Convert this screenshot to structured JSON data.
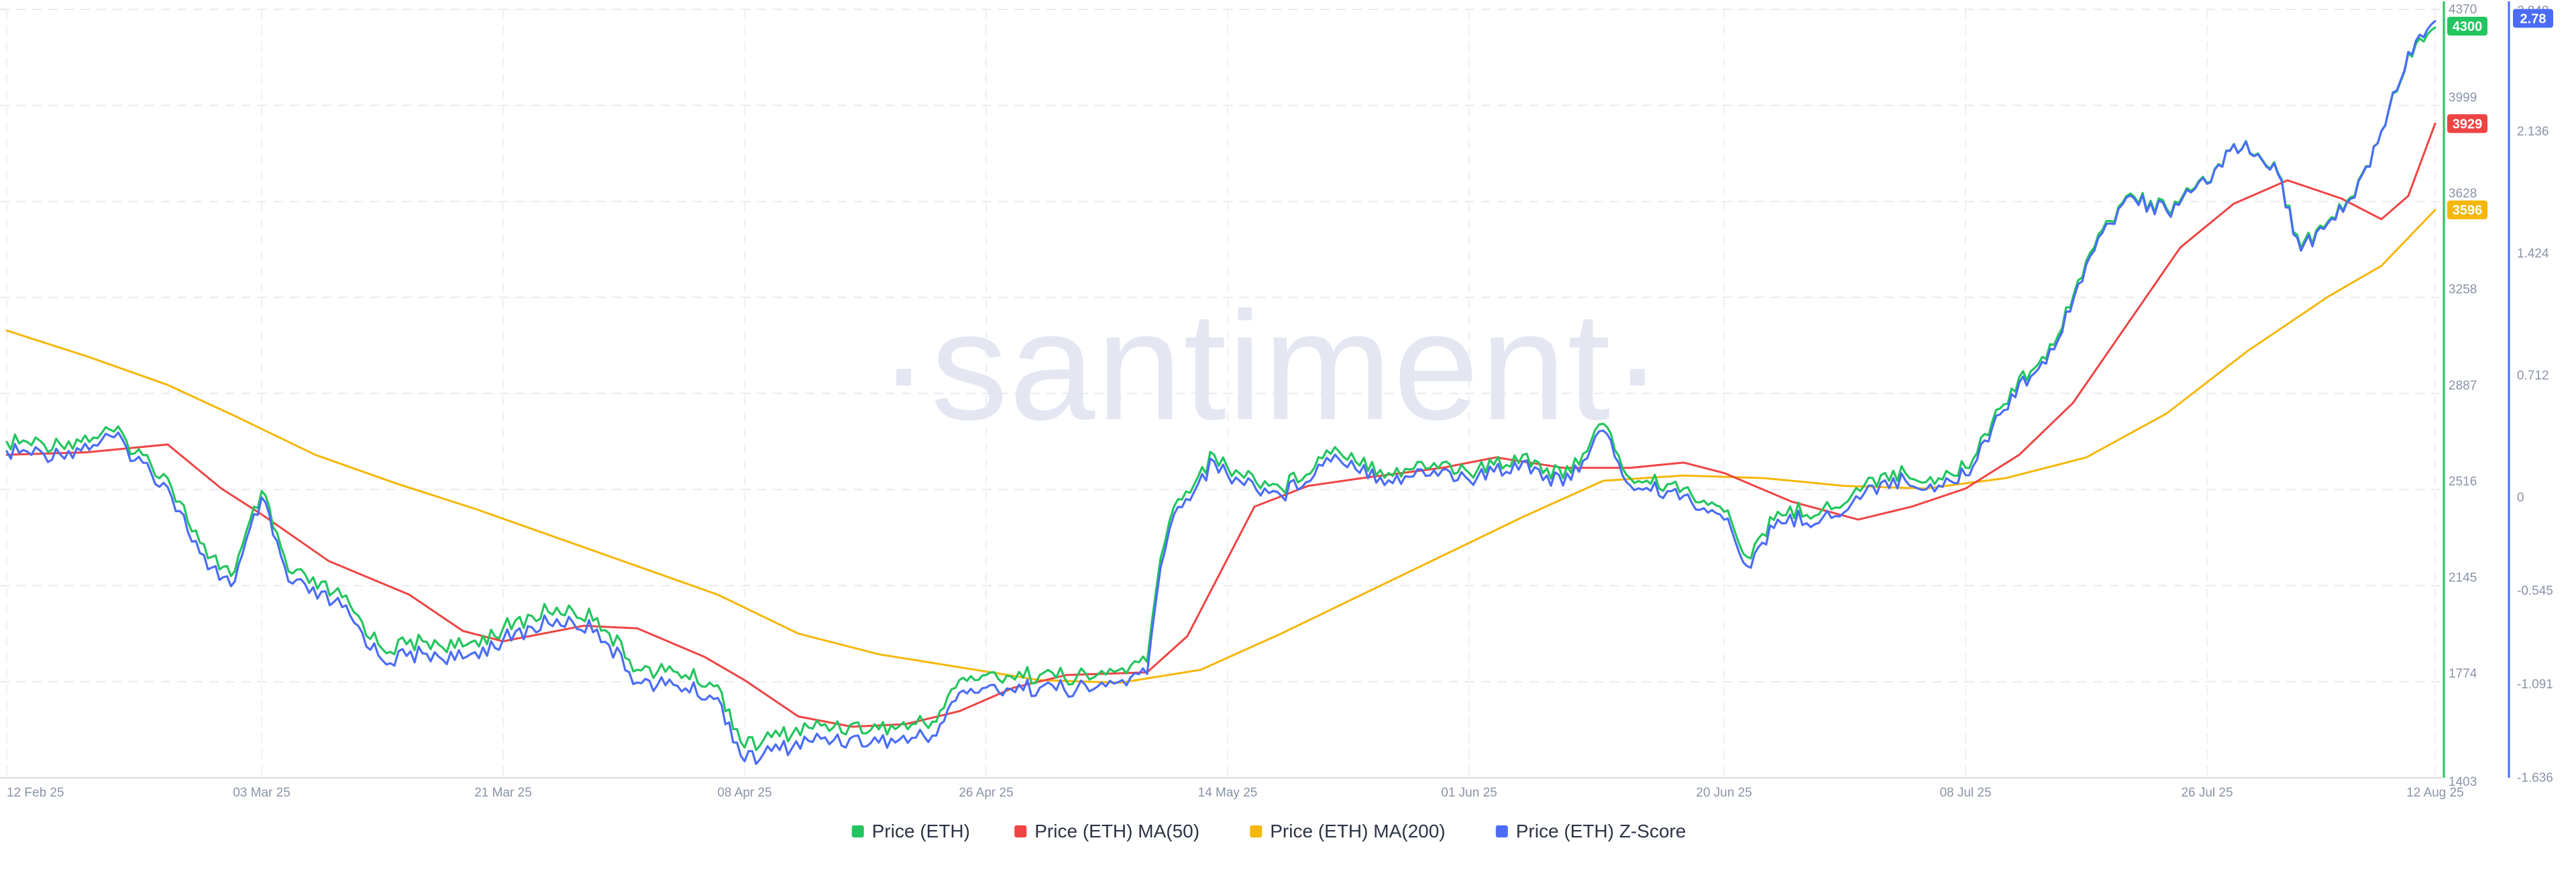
{
  "chart_data": {
    "type": "line",
    "watermark": "·santiment·",
    "x_ticks": [
      "12 Feb 25",
      "03 Mar 25",
      "21 Mar 25",
      "08 Apr 25",
      "26 Apr 25",
      "14 May 25",
      "01 Jun 25",
      "20 Jun 25",
      "08 Jul 25",
      "26 Jul 25",
      "12 Aug 25"
    ],
    "y_left": {
      "min": 1403,
      "max": 4370,
      "ticks": [
        "1403",
        "1774",
        "2145",
        "2516",
        "2887",
        "3258",
        "3628",
        "3999",
        "4370"
      ]
    },
    "y_right": {
      "min": -1.636,
      "max": 2.848,
      "ticks": [
        "-1.636",
        "-1.091",
        "-0.545",
        "0",
        "0.712",
        "1.424",
        "2.136",
        "2.848"
      ]
    },
    "last_values": {
      "price": {
        "label": "4300",
        "value": 4300,
        "color": "#22c55e"
      },
      "ma50": {
        "label": "3929",
        "value": 3929,
        "color": "#ef4444"
      },
      "ma200": {
        "label": "3596",
        "value": 3596,
        "color": "#f5b70a"
      },
      "zscore": {
        "label": "2.78",
        "value": 2.78,
        "color": "#4a6cf7"
      }
    },
    "series": [
      {
        "name": "Price (ETH)",
        "color": "#22c55e",
        "axis": "left",
        "points": [
          [
            "12 Feb 25",
            2700
          ],
          [
            "16 Feb 25",
            2690
          ],
          [
            "20 Feb 25",
            2740
          ],
          [
            "24 Feb 25",
            2560
          ],
          [
            "27 Feb 25",
            2250
          ],
          [
            "01 Mar 25",
            2200
          ],
          [
            "03 Mar 25",
            2510
          ],
          [
            "05 Mar 25",
            2200
          ],
          [
            "09 Mar 25",
            2100
          ],
          [
            "12 Mar 25",
            1900
          ],
          [
            "15 Mar 25",
            1930
          ],
          [
            "18 Mar 25",
            1910
          ],
          [
            "21 Mar 25",
            1980
          ],
          [
            "25 Mar 25",
            2060
          ],
          [
            "28 Mar 25",
            2020
          ],
          [
            "31 Mar 25",
            1820
          ],
          [
            "03 Apr 25",
            1810
          ],
          [
            "06 Apr 25",
            1760
          ],
          [
            "08 Apr 25",
            1520
          ],
          [
            "10 Apr 25",
            1560
          ],
          [
            "14 Apr 25",
            1610
          ],
          [
            "18 Apr 25",
            1590
          ],
          [
            "22 Apr 25",
            1620
          ],
          [
            "24 Apr 25",
            1780
          ],
          [
            "26 Apr 25",
            1800
          ],
          [
            "30 Apr 25",
            1800
          ],
          [
            "04 May 25",
            1790
          ],
          [
            "08 May 25",
            1850
          ],
          [
            "09 May 25",
            2250
          ],
          [
            "10 May 25",
            2450
          ],
          [
            "13 May 25",
            2650
          ],
          [
            "14 May 25",
            2600
          ],
          [
            "18 May 25",
            2520
          ],
          [
            "22 May 25",
            2680
          ],
          [
            "26 May 25",
            2580
          ],
          [
            "30 May 25",
            2620
          ],
          [
            "01 Jun 25",
            2580
          ],
          [
            "05 Jun 25",
            2650
          ],
          [
            "08 Jun 25",
            2560
          ],
          [
            "11 Jun 25",
            2770
          ],
          [
            "13 Jun 25",
            2560
          ],
          [
            "17 Jun 25",
            2520
          ],
          [
            "20 Jun 25",
            2430
          ],
          [
            "22 Jun 25",
            2250
          ],
          [
            "24 Jun 25",
            2430
          ],
          [
            "28 Jun 25",
            2440
          ],
          [
            "02 Jul 25",
            2580
          ],
          [
            "06 Jul 25",
            2560
          ],
          [
            "08 Jul 25",
            2600
          ],
          [
            "10 Jul 25",
            2780
          ],
          [
            "12 Jul 25",
            2950
          ],
          [
            "14 Jul 25",
            3020
          ],
          [
            "17 Jul 25",
            3400
          ],
          [
            "20 Jul 25",
            3650
          ],
          [
            "23 Jul 25",
            3600
          ],
          [
            "26 Jul 25",
            3700
          ],
          [
            "28 Jul 25",
            3850
          ],
          [
            "31 Jul 25",
            3780
          ],
          [
            "02 Aug 25",
            3450
          ],
          [
            "04 Aug 25",
            3550
          ],
          [
            "06 Aug 25",
            3650
          ],
          [
            "08 Aug 25",
            3900
          ],
          [
            "10 Aug 25",
            4200
          ],
          [
            "12 Aug 25",
            4300
          ]
        ]
      },
      {
        "name": "Price (ETH) MA(50)",
        "color": "#ef4444",
        "axis": "left",
        "points": [
          [
            "12 Feb 25",
            2650
          ],
          [
            "18 Feb 25",
            2660
          ],
          [
            "24 Feb 25",
            2690
          ],
          [
            "28 Feb 25",
            2520
          ],
          [
            "03 Mar 25",
            2420
          ],
          [
            "08 Mar 25",
            2240
          ],
          [
            "14 Mar 25",
            2110
          ],
          [
            "18 Mar 25",
            1970
          ],
          [
            "21 Mar 25",
            1930
          ],
          [
            "27 Mar 25",
            1990
          ],
          [
            "31 Mar 25",
            1980
          ],
          [
            "05 Apr 25",
            1870
          ],
          [
            "08 Apr 25",
            1780
          ],
          [
            "12 Apr 25",
            1640
          ],
          [
            "16 Apr 25",
            1600
          ],
          [
            "20 Apr 25",
            1610
          ],
          [
            "24 Apr 25",
            1660
          ],
          [
            "28 Apr 25",
            1750
          ],
          [
            "02 May 25",
            1800
          ],
          [
            "08 May 25",
            1810
          ],
          [
            "11 May 25",
            1950
          ],
          [
            "14 May 25",
            2250
          ],
          [
            "16 May 25",
            2450
          ],
          [
            "20 May 25",
            2530
          ],
          [
            "24 May 25",
            2560
          ],
          [
            "30 May 25",
            2600
          ],
          [
            "03 Jun 25",
            2640
          ],
          [
            "08 Jun 25",
            2600
          ],
          [
            "13 Jun 25",
            2600
          ],
          [
            "17 Jun 25",
            2620
          ],
          [
            "20 Jun 25",
            2580
          ],
          [
            "25 Jun 25",
            2470
          ],
          [
            "30 Jun 25",
            2400
          ],
          [
            "04 Jul 25",
            2450
          ],
          [
            "08 Jul 25",
            2520
          ],
          [
            "12 Jul 25",
            2650
          ],
          [
            "16 Jul 25",
            2850
          ],
          [
            "20 Jul 25",
            3150
          ],
          [
            "24 Jul 25",
            3450
          ],
          [
            "28 Jul 25",
            3620
          ],
          [
            "01 Aug 25",
            3710
          ],
          [
            "05 Aug 25",
            3640
          ],
          [
            "08 Aug 25",
            3560
          ],
          [
            "10 Aug 25",
            3650
          ],
          [
            "12 Aug 25",
            3929
          ]
        ]
      },
      {
        "name": "Price (ETH) MA(200)",
        "color": "#f5b70a",
        "axis": "left",
        "points": [
          [
            "12 Feb 25",
            3130
          ],
          [
            "18 Feb 25",
            3030
          ],
          [
            "24 Feb 25",
            2920
          ],
          [
            "01 Mar 25",
            2800
          ],
          [
            "07 Mar 25",
            2650
          ],
          [
            "13 Mar 25",
            2540
          ],
          [
            "19 Mar 25",
            2440
          ],
          [
            "25 Mar 25",
            2330
          ],
          [
            "31 Mar 25",
            2220
          ],
          [
            "06 Apr 25",
            2110
          ],
          [
            "12 Apr 25",
            1960
          ],
          [
            "18 Apr 25",
            1880
          ],
          [
            "24 Apr 25",
            1830
          ],
          [
            "30 Apr 25",
            1780
          ],
          [
            "06 May 25",
            1770
          ],
          [
            "12 May 25",
            1820
          ],
          [
            "18 May 25",
            1960
          ],
          [
            "24 May 25",
            2110
          ],
          [
            "30 May 25",
            2260
          ],
          [
            "05 Jun 25",
            2410
          ],
          [
            "11 Jun 25",
            2550
          ],
          [
            "17 Jun 25",
            2570
          ],
          [
            "23 Jun 25",
            2560
          ],
          [
            "29 Jun 25",
            2530
          ],
          [
            "05 Jul 25",
            2520
          ],
          [
            "11 Jul 25",
            2560
          ],
          [
            "17 Jul 25",
            2640
          ],
          [
            "23 Jul 25",
            2810
          ],
          [
            "29 Jul 25",
            3050
          ],
          [
            "04 Aug 25",
            3260
          ],
          [
            "08 Aug 25",
            3380
          ],
          [
            "12 Aug 25",
            3596
          ]
        ]
      },
      {
        "name": "Price (ETH) Z-Score",
        "color": "#4a6cf7",
        "axis": "right",
        "points": [
          [
            "12 Feb 25",
            0.27
          ],
          [
            "16 Feb 25",
            0.25
          ],
          [
            "20 Feb 25",
            0.35
          ],
          [
            "24 Feb 25",
            0.06
          ],
          [
            "27 Feb 25",
            -0.42
          ],
          [
            "01 Mar 25",
            -0.49
          ],
          [
            "03 Mar 25",
            0.0
          ],
          [
            "05 Mar 25",
            -0.49
          ],
          [
            "09 Mar 25",
            -0.64
          ],
          [
            "12 Mar 25",
            -0.95
          ],
          [
            "15 Mar 25",
            -0.91
          ],
          [
            "18 Mar 25",
            -0.94
          ],
          [
            "21 Mar 25",
            -0.83
          ],
          [
            "25 Mar 25",
            -0.71
          ],
          [
            "28 Mar 25",
            -0.77
          ],
          [
            "31 Mar 25",
            -1.08
          ],
          [
            "03 Apr 25",
            -1.1
          ],
          [
            "06 Apr 25",
            -1.17
          ],
          [
            "08 Apr 25",
            -1.54
          ],
          [
            "10 Apr 25",
            -1.48
          ],
          [
            "14 Apr 25",
            -1.4
          ],
          [
            "18 Apr 25",
            -1.43
          ],
          [
            "22 Apr 25",
            -1.39
          ],
          [
            "24 Apr 25",
            -1.14
          ],
          [
            "26 Apr 25",
            -1.11
          ],
          [
            "30 Apr 25",
            -1.11
          ],
          [
            "04 May 25",
            -1.12
          ],
          [
            "08 May 25",
            -1.03
          ],
          [
            "09 May 25",
            -0.41
          ],
          [
            "10 May 25",
            -0.1
          ],
          [
            "13 May 25",
            0.21
          ],
          [
            "14 May 25",
            0.13
          ],
          [
            "18 May 25",
            0.01
          ],
          [
            "22 May 25",
            0.25
          ],
          [
            "26 May 25",
            0.1
          ],
          [
            "30 May 25",
            0.16
          ],
          [
            "01 Jun 25",
            0.1
          ],
          [
            "05 Jun 25",
            0.21
          ],
          [
            "08 Jun 25",
            0.07
          ],
          [
            "11 Jun 25",
            0.39
          ],
          [
            "13 Jun 25",
            0.07
          ],
          [
            "17 Jun 25",
            0.01
          ],
          [
            "20 Jun 25",
            -0.13
          ],
          [
            "22 Jun 25",
            -0.41
          ],
          [
            "24 Jun 25",
            -0.13
          ],
          [
            "28 Jun 25",
            -0.12
          ],
          [
            "02 Jul 25",
            0.1
          ],
          [
            "06 Jul 25",
            0.07
          ],
          [
            "08 Jul 25",
            0.13
          ],
          [
            "10 Jul 25",
            0.41
          ],
          [
            "12 Jul 25",
            0.67
          ],
          [
            "14 Jul 25",
            0.78
          ],
          [
            "17 Jul 25",
            1.36
          ],
          [
            "20 Jul 25",
            1.75
          ],
          [
            "23 Jul 25",
            1.67
          ],
          [
            "26 Jul 25",
            1.83
          ],
          [
            "28 Jul 25",
            2.06
          ],
          [
            "31 Jul 25",
            1.95
          ],
          [
            "02 Aug 25",
            1.44
          ],
          [
            "04 Aug 25",
            1.6
          ],
          [
            "06 Aug 25",
            1.75
          ],
          [
            "08 Aug 25",
            2.14
          ],
          [
            "10 Aug 25",
            2.6
          ],
          [
            "12 Aug 25",
            2.78
          ]
        ]
      }
    ],
    "legend": {
      "placement": "bottom-center",
      "items": [
        {
          "label": "Price (ETH)",
          "color": "#22c55e"
        },
        {
          "label": "Price (ETH) MA(50)",
          "color": "#ef4444"
        },
        {
          "label": "Price (ETH) MA(200)",
          "color": "#f5b70a"
        },
        {
          "label": "Price (ETH) Z-Score",
          "color": "#4a6cf7"
        }
      ]
    },
    "grid": true
  }
}
